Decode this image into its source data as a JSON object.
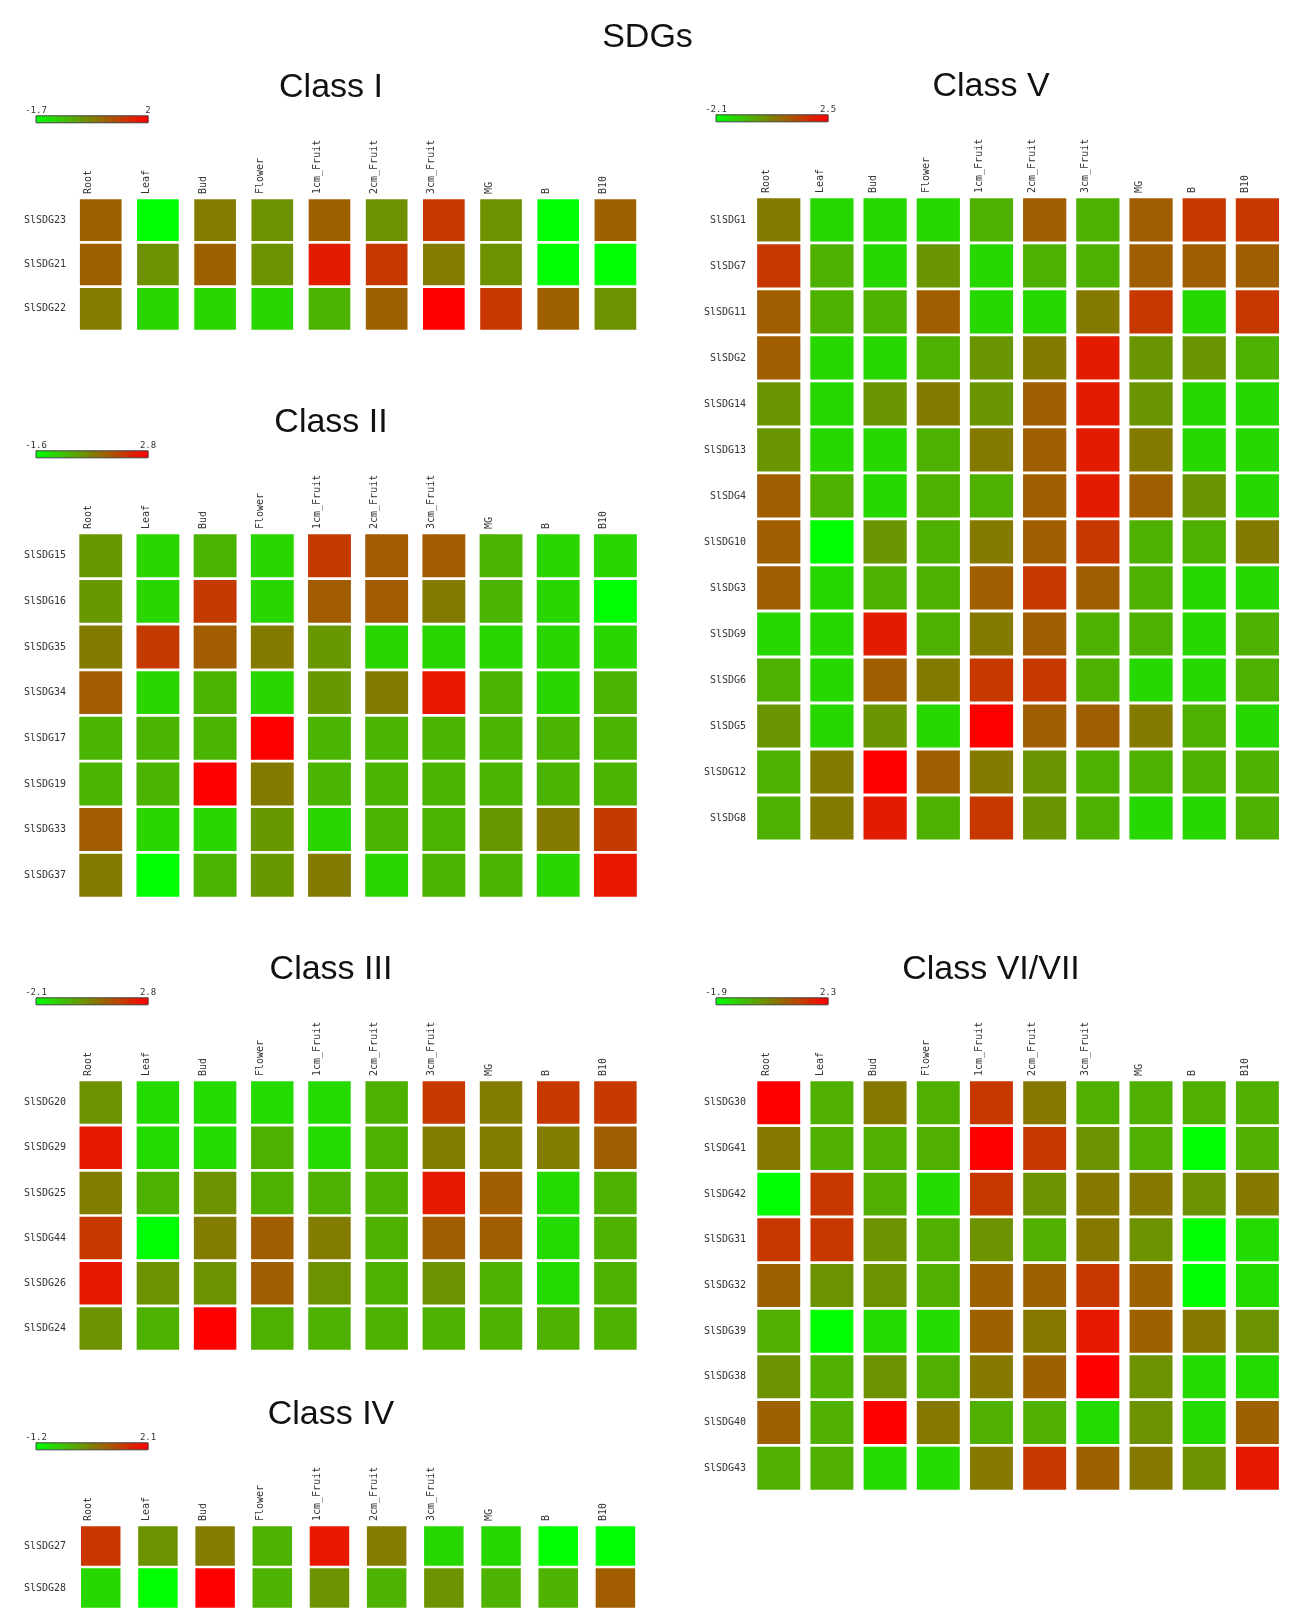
{
  "chart_data": [
    {
      "type": "heatmap",
      "title": "Class I",
      "annotations": [
        "SDGs"
      ],
      "clim": [
        -1.7,
        2
      ],
      "cticks": [
        -1.7,
        2
      ],
      "categories": [
        "Root",
        "Leaf",
        "Bud",
        "Flower",
        "1cm_Fruit",
        "2cm_Fruit",
        "3cm_Fruit",
        "MG",
        "B",
        "B10"
      ],
      "y_categories": [
        "SlSDG23",
        "SlSDG21",
        "SlSDG22"
      ],
      "cells": [
        [
          0.6,
          -1.7,
          0.2,
          -0.1,
          0.6,
          -0.1,
          1.2,
          -0.1,
          -1.7,
          0.6
        ],
        [
          0.6,
          -0.1,
          0.6,
          -0.1,
          1.6,
          1.2,
          0.2,
          -0.1,
          -1.7,
          -1.7
        ],
        [
          0.2,
          -1.1,
          -1.1,
          -1.1,
          -0.6,
          0.6,
          2,
          1.2,
          0.6,
          -0.1
        ]
      ]
    },
    {
      "type": "heatmap",
      "title": "Class II",
      "clim": [
        -1.6,
        2.8
      ],
      "cticks": [
        -1.6,
        2.8
      ],
      "categories": [
        "Root",
        "Leaf",
        "Bud",
        "Flower",
        "1cm_Fruit",
        "2cm_Fruit",
        "3cm_Fruit",
        "MG",
        "B",
        "B10"
      ],
      "y_categories": [
        "SlSDG15",
        "SlSDG16",
        "SlSDG35",
        "SlSDG34",
        "SlSDG17",
        "SlSDG19",
        "SlSDG33",
        "SlSDG37"
      ],
      "cells": [
        [
          0.2,
          -0.9,
          -0.3,
          -0.9,
          1.8,
          1.2,
          1.2,
          -0.3,
          -0.9,
          -0.9
        ],
        [
          0.2,
          -0.9,
          1.8,
          -0.9,
          1.2,
          1.2,
          0.7,
          -0.3,
          -0.9,
          -1.6
        ],
        [
          0.7,
          1.8,
          1.2,
          0.7,
          0.2,
          -0.9,
          -0.9,
          -0.9,
          -0.9,
          -0.9
        ],
        [
          1.2,
          -0.9,
          -0.3,
          -0.9,
          0.2,
          0.7,
          2.4,
          -0.3,
          -0.9,
          -0.3
        ],
        [
          -0.3,
          -0.3,
          -0.3,
          2.8,
          -0.3,
          -0.3,
          -0.3,
          -0.3,
          -0.3,
          -0.3
        ],
        [
          -0.3,
          -0.3,
          2.8,
          0.7,
          -0.3,
          -0.3,
          -0.3,
          -0.3,
          -0.3,
          -0.3
        ],
        [
          1.2,
          -0.9,
          -0.9,
          0.2,
          -0.9,
          -0.3,
          -0.3,
          0.2,
          0.7,
          1.8
        ],
        [
          0.7,
          -1.6,
          -0.3,
          0.2,
          0.7,
          -0.9,
          -0.3,
          -0.3,
          -0.9,
          2.4
        ]
      ]
    },
    {
      "type": "heatmap",
      "title": "Class III",
      "clim": [
        -2.1,
        2.8
      ],
      "cticks": [
        -2.1,
        2.8
      ],
      "categories": [
        "Root",
        "Leaf",
        "Bud",
        "Flower",
        "1cm_Fruit",
        "2cm_Fruit",
        "3cm_Fruit",
        "MG",
        "B",
        "B10"
      ],
      "y_categories": [
        "SlSDG20",
        "SlSDG29",
        "SlSDG25",
        "SlSDG44",
        "SlSDG26",
        "SlSDG24"
      ],
      "cells": [
        [
          0,
          -1.4,
          -1.4,
          -1.4,
          -1.4,
          -0.6,
          1.7,
          0.4,
          1.7,
          1.7
        ],
        [
          2.3,
          -1.4,
          -1.4,
          -0.6,
          -1.4,
          -0.6,
          0.4,
          0.4,
          0.4,
          1.0
        ],
        [
          0.4,
          -0.6,
          0,
          -0.6,
          -0.6,
          -0.6,
          2.3,
          1.0,
          -1.4,
          -0.6
        ],
        [
          1.7,
          -2.1,
          0.4,
          1.0,
          0.4,
          -0.6,
          1.0,
          1.0,
          -1.4,
          -0.6
        ],
        [
          2.3,
          0,
          0,
          1.0,
          0,
          -0.6,
          0,
          -0.6,
          -1.4,
          -0.6
        ],
        [
          0,
          -0.6,
          2.8,
          -0.6,
          -0.6,
          -0.6,
          -0.6,
          -0.6,
          -0.6,
          -0.6
        ]
      ]
    },
    {
      "type": "heatmap",
      "title": "Class IV",
      "clim": [
        -1.2,
        2.1
      ],
      "cticks": [
        -1.2,
        2.1
      ],
      "categories": [
        "Root",
        "Leaf",
        "Bud",
        "Flower",
        "1cm_Fruit",
        "2cm_Fruit",
        "3cm_Fruit",
        "MG",
        "B",
        "B10"
      ],
      "y_categories": [
        "SlSDG27",
        "SlSDG28"
      ],
      "cells": [
        [
          1.4,
          0.2,
          0.5,
          -0.2,
          1.8,
          0.5,
          -0.7,
          -0.7,
          -1.2,
          -1.2
        ],
        [
          -0.7,
          -1.2,
          2.1,
          -0.2,
          0.2,
          -0.2,
          0.2,
          -0.2,
          -0.2,
          0.9
        ]
      ]
    },
    {
      "type": "heatmap",
      "title": "Class V",
      "clim": [
        -2.1,
        2.5
      ],
      "cticks": [
        -2.1,
        2.5
      ],
      "categories": [
        "Root",
        "Leaf",
        "Bud",
        "Flower",
        "1cm_Fruit",
        "2cm_Fruit",
        "3cm_Fruit",
        "MG",
        "B",
        "B10"
      ],
      "y_categories": [
        "SlSDG1",
        "SlSDG7",
        "SlSDG11",
        "SlSDG2",
        "SlSDG14",
        "SlSDG13",
        "SlSDG4",
        "SlSDG10",
        "SlSDG3",
        "SlSDG9",
        "SlSDG6",
        "SlSDG5",
        "SlSDG12",
        "SlSDG8"
      ],
      "cells": [
        [
          0.3,
          -1.4,
          -1.4,
          -1.4,
          -0.7,
          0.8,
          -0.7,
          0.8,
          1.5,
          1.5
        ],
        [
          1.5,
          -0.7,
          -1.4,
          -0.2,
          -1.4,
          -0.7,
          -0.7,
          0.8,
          0.8,
          0.8
        ],
        [
          0.8,
          -0.7,
          -0.7,
          0.8,
          -1.4,
          -1.4,
          0.3,
          1.5,
          -1.4,
          1.5
        ],
        [
          0.8,
          -1.4,
          -1.4,
          -0.7,
          -0.2,
          0.3,
          2.0,
          -0.2,
          -0.2,
          -0.7
        ],
        [
          -0.2,
          -1.4,
          -0.2,
          0.3,
          -0.2,
          0.8,
          2.0,
          -0.2,
          -1.4,
          -1.4
        ],
        [
          -0.2,
          -1.4,
          -1.4,
          -0.7,
          0.3,
          0.8,
          2.0,
          0.3,
          -1.4,
          -1.4
        ],
        [
          0.8,
          -0.7,
          -1.4,
          -0.7,
          -0.7,
          0.8,
          2.0,
          0.8,
          -0.2,
          -1.4
        ],
        [
          0.8,
          -2.1,
          -0.2,
          -0.7,
          0.3,
          0.8,
          1.5,
          -0.7,
          -0.7,
          0.3
        ],
        [
          0.8,
          -1.4,
          -0.7,
          -0.7,
          0.8,
          1.5,
          0.8,
          -0.7,
          -1.4,
          -1.4
        ],
        [
          -1.4,
          -1.4,
          2.0,
          -0.7,
          0.3,
          0.8,
          -0.7,
          -0.7,
          -1.4,
          -0.7
        ],
        [
          -0.7,
          -1.4,
          0.8,
          0.3,
          1.5,
          1.5,
          -0.7,
          -1.4,
          -1.4,
          -0.7
        ],
        [
          -0.2,
          -1.4,
          -0.2,
          -1.4,
          2.5,
          0.8,
          0.8,
          0.3,
          -0.7,
          -1.4
        ],
        [
          -0.7,
          0.3,
          2.5,
          0.8,
          0.3,
          -0.2,
          -0.7,
          -0.7,
          -0.7,
          -0.7
        ],
        [
          -0.7,
          0.3,
          2.0,
          -0.7,
          1.5,
          -0.2,
          -0.7,
          -1.4,
          -1.4,
          -0.7
        ]
      ]
    },
    {
      "type": "heatmap",
      "title": "Class VI/VII",
      "clim": [
        -1.9,
        2.3
      ],
      "cticks": [
        -1.9,
        2.3
      ],
      "categories": [
        "Root",
        "Leaf",
        "Bud",
        "Flower",
        "1cm_Fruit",
        "2cm_Fruit",
        "3cm_Fruit",
        "MG",
        "B",
        "B10"
      ],
      "y_categories": [
        "SlSDG30",
        "SlSDG41",
        "SlSDG42",
        "SlSDG31",
        "SlSDG32",
        "SlSDG39",
        "SlSDG38",
        "SlSDG40",
        "SlSDG43"
      ],
      "cells": [
        [
          2.3,
          -0.6,
          0.3,
          -0.6,
          1.4,
          0.3,
          -0.6,
          -0.6,
          -0.6,
          -0.6
        ],
        [
          0.3,
          -0.6,
          -0.6,
          -0.6,
          2.3,
          1.4,
          -0.1,
          -0.6,
          -1.9,
          -0.6
        ],
        [
          -1.9,
          1.4,
          -0.6,
          -1.3,
          1.4,
          -0.1,
          0.3,
          0.3,
          -0.1,
          0.3
        ],
        [
          1.4,
          1.4,
          -0.1,
          -0.6,
          -0.1,
          -0.6,
          0.3,
          -0.1,
          -1.9,
          -1.3
        ],
        [
          0.7,
          -0.1,
          -0.1,
          -0.6,
          0.7,
          0.7,
          1.4,
          0.7,
          -1.9,
          -1.3
        ],
        [
          -0.6,
          -1.9,
          -1.3,
          -1.3,
          0.7,
          0.3,
          1.9,
          0.7,
          0.3,
          -0.1
        ],
        [
          -0.1,
          -0.6,
          -0.1,
          -0.6,
          0.3,
          0.7,
          2.3,
          -0.1,
          -1.3,
          -1.3
        ],
        [
          0.7,
          -0.6,
          2.3,
          0.3,
          -0.6,
          -0.6,
          -1.3,
          -0.1,
          -1.3,
          0.7
        ],
        [
          -0.6,
          -0.6,
          -1.3,
          -1.3,
          0.3,
          1.4,
          0.7,
          0.3,
          -0.1,
          1.9
        ]
      ]
    }
  ]
}
